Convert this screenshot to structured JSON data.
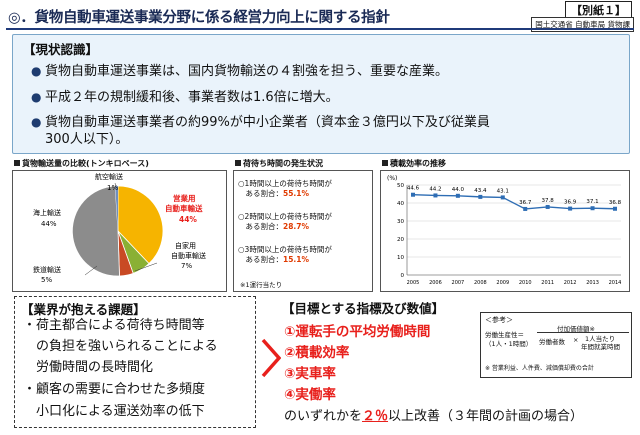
{
  "header": {
    "title": "◎．貨物自動車運送事業分野に係る経営力向上に関する指針",
    "attachment": "【別紙１】",
    "ministry": "国土交通省 自動車局 貨物課"
  },
  "situation": {
    "heading": "【現状認識】",
    "bullets": [
      "貨物自動車運送事業は、国内貨物輸送の４割強を担う、重要な産業。",
      "平成２年の規制緩和後、事業者数は1.6倍に増大。",
      "貨物自動車運送事業者の約99%が中小企業者（資本金３億円以下及び従業員",
      "300人以下）。"
    ]
  },
  "pie_panel": {
    "title": "貨物輸送量の比較(トンキロベース)",
    "labels": {
      "air": "航空輸送",
      "air_pct": "1%",
      "business_1": "営業用",
      "business_2": "自動車輸送",
      "business_pct": "44%",
      "private_1": "自家用",
      "private_2": "自動車輸送",
      "private_pct": "7%",
      "rail": "鉄道輸送",
      "rail_pct": "5%",
      "sea": "海上輸送",
      "sea_pct": "44%"
    }
  },
  "wait_panel": {
    "title": "荷待ち時間の発生状況",
    "items": [
      {
        "line1": "○1時間以上の荷待ち時間が",
        "line2": "　ある割合：",
        "pct": "55.1%"
      },
      {
        "line1": "○2時間以上の荷待ち時間が",
        "line2": "　ある割合：",
        "pct": "28.7%"
      },
      {
        "line1": "○3時間以上の荷待ち時間が",
        "line2": "　ある割合：",
        "pct": "15.1%"
      }
    ],
    "note": "※1運行当たり"
  },
  "chart_data": {
    "type": "line",
    "title": "積載効率の推移",
    "ylabel": "(%)",
    "x": [
      "2005",
      "2006",
      "2007",
      "2008",
      "2009",
      "2010",
      "2011",
      "2012",
      "2013",
      "2014"
    ],
    "values": [
      44.6,
      44.2,
      44.0,
      43.4,
      43.1,
      36.7,
      37.8,
      36.9,
      37.1,
      36.8
    ],
    "value_labels": [
      "44.6",
      "44.2",
      "44.0",
      "43.4",
      "43.1",
      "36.7",
      "37.8",
      "36.9",
      "37.1",
      "36.8"
    ],
    "ylim": [
      0,
      50
    ],
    "yticks": [
      "50",
      "40",
      "30",
      "20",
      "10",
      "0"
    ],
    "grid": true,
    "color": "#2e6db4"
  },
  "issues": {
    "heading": "【業界が抱える課題】",
    "lines": [
      "・荷主都合による荷待ち時間等",
      "　の負担を強いられることによる",
      "　労働時間の長時間化",
      "・顧客の需要に合わせた多頻度",
      "　小口化による運送効率の低下"
    ]
  },
  "goals": {
    "heading": "【目標とする指標及び数値】",
    "items": [
      "①運転手の平均労働時間",
      "②積載効率",
      "③実車率",
      "④実働率"
    ],
    "closing_pre": "のいずれかを",
    "closing_pct": "２％",
    "closing_post": "以上改善（３年間の計画の場合）"
  },
  "reference": {
    "title": "＜参考＞",
    "label_1": "労働生産性＝",
    "label_2": "（1人・1時間）",
    "numerator": "付加価値額※",
    "denominator_1": "労働者数",
    "times": "×",
    "denominator_2": "1人当たり",
    "denominator_3": "年間就業時間",
    "note": "※ 営業利益、人件費、減価償却費の合計"
  },
  "colors": {
    "accent_red": "#e8201c",
    "pie_business": "#f6b400",
    "pie_private": "#8ab034",
    "pie_rail": "#c94a24",
    "pie_sea": "#8c8c8c",
    "pie_air": "#6f8fbf"
  }
}
